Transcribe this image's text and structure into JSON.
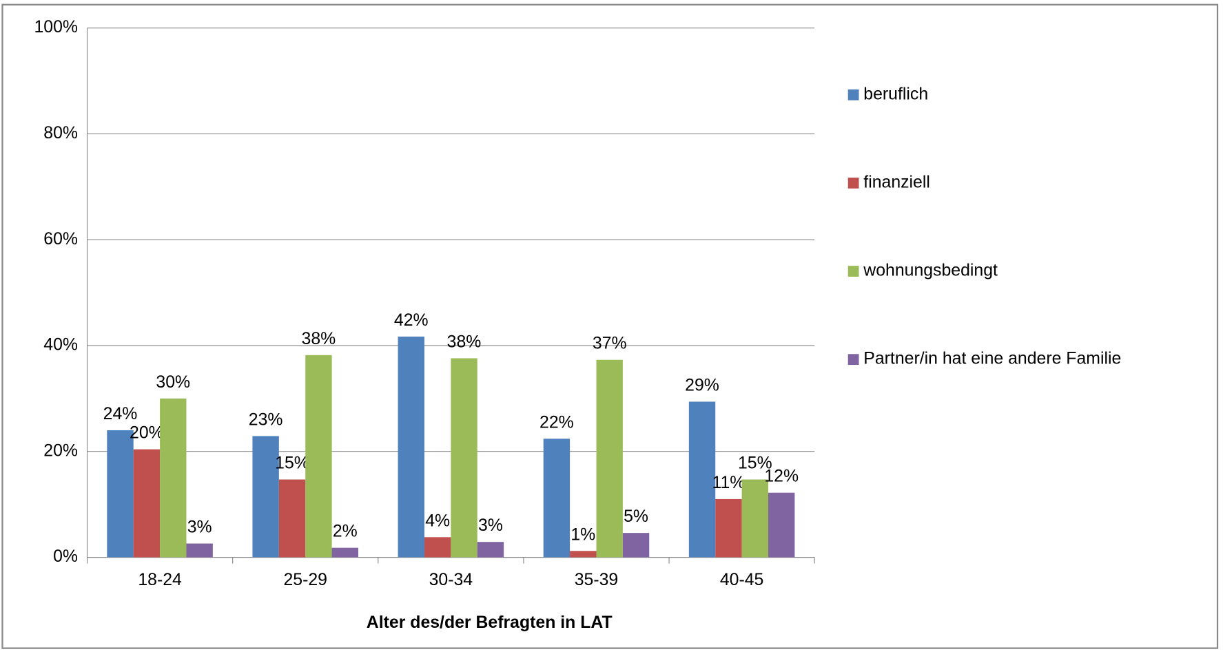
{
  "chart_data": {
    "type": "bar",
    "x_label": "Alter des/der Befragten in LAT",
    "categories": [
      "18-24",
      "25-29",
      "30-34",
      "35-39",
      "40-45"
    ],
    "series": [
      {
        "name": "beruflich",
        "color": "#4f81bd",
        "values": [
          24,
          22.9,
          41.7,
          22.4,
          29.4
        ],
        "value_labels": [
          "24%",
          "23%",
          "42%",
          "22%",
          "29%"
        ]
      },
      {
        "name": "finanziell",
        "color": "#c0504d",
        "values": [
          20.4,
          14.7,
          3.8,
          1.2,
          11
        ],
        "value_labels": [
          "20%",
          "15%",
          "4%",
          "1%",
          "11%"
        ]
      },
      {
        "name": "wohnungsbedingt",
        "color": "#9bbb59",
        "values": [
          30,
          38.2,
          37.6,
          37.3,
          14.7
        ],
        "value_labels": [
          "30%",
          "38%",
          "38%",
          "37%",
          "15%"
        ]
      },
      {
        "name": "Partner/in hat eine andere Familie",
        "color": "#8064a2",
        "values": [
          2.6,
          1.8,
          2.9,
          4.6,
          12.2
        ],
        "value_labels": [
          "3%",
          "2%",
          "3%",
          "5%",
          "12%"
        ]
      }
    ],
    "ylim": [
      0,
      100
    ],
    "yticks": [
      {
        "value": 0,
        "label": "0%"
      },
      {
        "value": 20,
        "label": "20%"
      },
      {
        "value": 40,
        "label": "40%"
      },
      {
        "value": 60,
        "label": "60%"
      },
      {
        "value": 80,
        "label": "80%"
      },
      {
        "value": 100,
        "label": "100%"
      }
    ],
    "grid": true,
    "legend": "right"
  }
}
